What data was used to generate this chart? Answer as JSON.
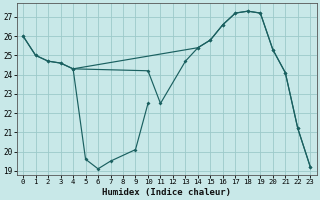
{
  "xlabel": "Humidex (Indice chaleur)",
  "bg_color": "#c8e8e8",
  "grid_color": "#9ccaca",
  "line_color": "#1a6060",
  "xlim": [
    -0.5,
    23.5
  ],
  "ylim": [
    18.8,
    27.7
  ],
  "yticks": [
    19,
    20,
    21,
    22,
    23,
    24,
    25,
    26,
    27
  ],
  "xticks": [
    0,
    1,
    2,
    3,
    4,
    5,
    6,
    7,
    8,
    9,
    10,
    11,
    12,
    13,
    14,
    15,
    16,
    17,
    18,
    19,
    20,
    21,
    22,
    23
  ],
  "series1_x": [
    0,
    1,
    2,
    3,
    4,
    5,
    6,
    7,
    9,
    10
  ],
  "series1_y": [
    26.0,
    25.0,
    24.7,
    24.6,
    24.3,
    19.6,
    19.1,
    19.5,
    20.1,
    22.5
  ],
  "series2_x": [
    0,
    1,
    2,
    3,
    4,
    10,
    11,
    13,
    14,
    15,
    16,
    17,
    18,
    19,
    20,
    21,
    22,
    23
  ],
  "series2_y": [
    26.0,
    25.0,
    24.7,
    24.6,
    24.3,
    24.2,
    22.5,
    24.7,
    25.4,
    25.8,
    26.6,
    27.2,
    27.3,
    27.2,
    25.3,
    24.1,
    21.2,
    19.2
  ],
  "series3_x": [
    4,
    14,
    15,
    16,
    17,
    18,
    19,
    20,
    21,
    22,
    23
  ],
  "series3_y": [
    24.3,
    25.4,
    25.8,
    26.6,
    27.2,
    27.3,
    27.2,
    25.3,
    24.1,
    21.2,
    19.2
  ]
}
